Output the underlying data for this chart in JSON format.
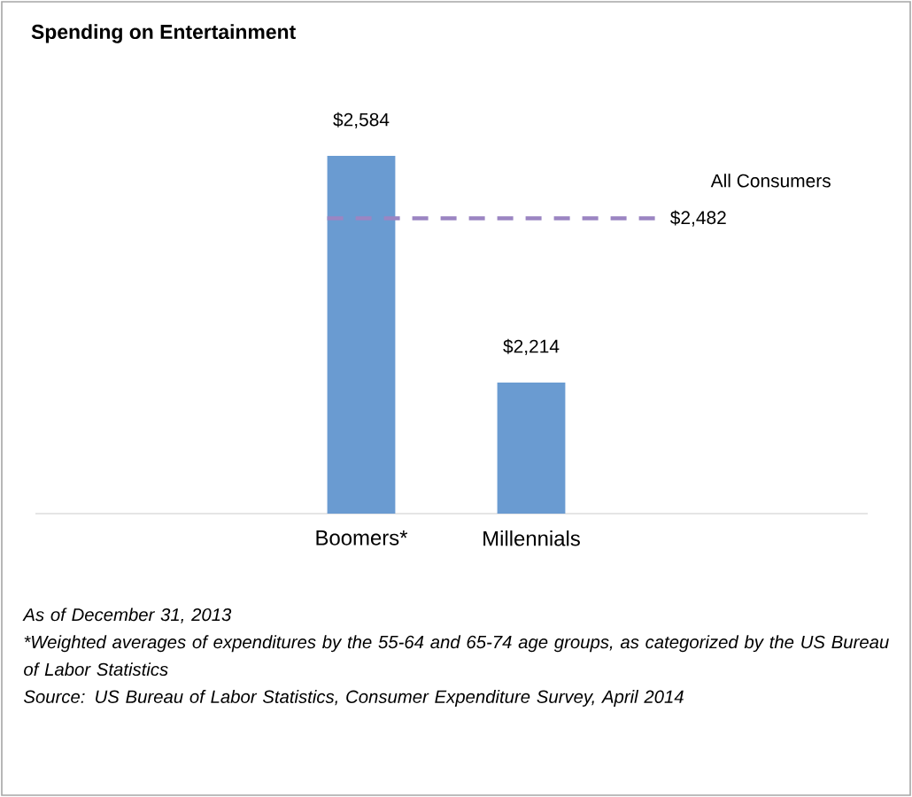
{
  "chart_data": {
    "type": "bar",
    "title": "Spending on Entertainment",
    "categories": [
      "Boomers*",
      "Millennials"
    ],
    "values": [
      2584,
      2214
    ],
    "value_labels": [
      "$2,584",
      "$2,214"
    ],
    "color": "#6a9bd1",
    "ylim": [
      2000,
      2584
    ],
    "ref_lines": [
      {
        "axis": "y",
        "value": 2482,
        "label": "$2,482",
        "color": "#9b85c2",
        "line_style": "dashed"
      }
    ],
    "annotations": [
      "All Consumers",
      "As of December 31, 2013",
      "*Weighted averages of expenditures by the 55-64 and 65-74 age groups, as categorized by the US Bureau of Labor Statistics",
      "Source: US Bureau of Labor Statistics, Consumer Expenditure Survey, April 2014"
    ]
  }
}
